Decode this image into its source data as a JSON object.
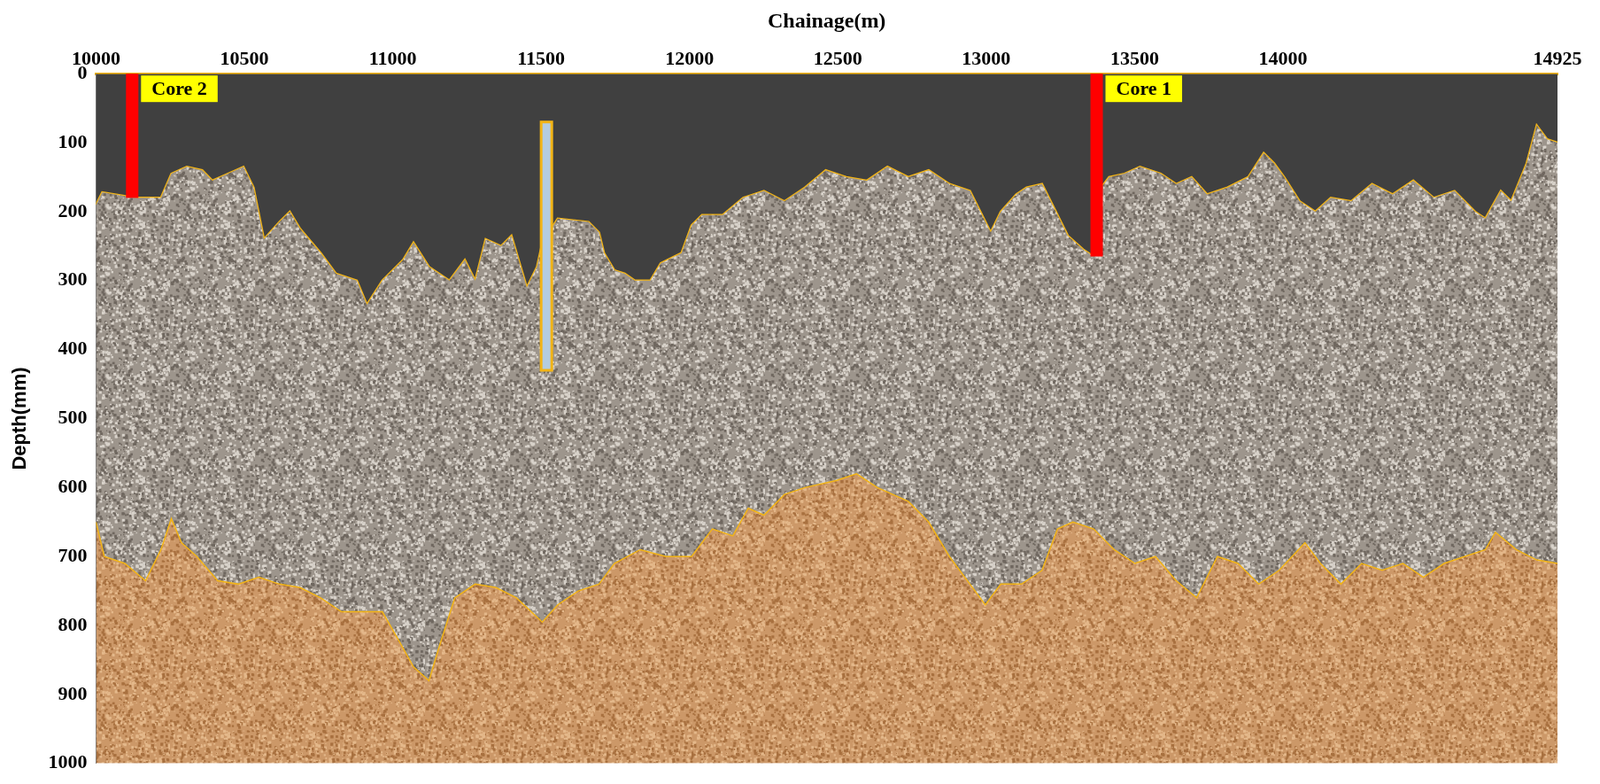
{
  "chart_data": {
    "type": "line",
    "x_label": "Chainage(m)",
    "y_label": "Depth(mm)",
    "xlim": [
      10000,
      14925
    ],
    "xticks": [
      10000,
      10500,
      11000,
      11500,
      12000,
      12500,
      13000,
      13500,
      14000,
      14925
    ],
    "ylim": [
      0,
      1000
    ],
    "yticks": [
      0,
      100,
      200,
      300,
      400,
      500,
      600,
      700,
      800,
      900,
      1000
    ],
    "grid": false,
    "series": [
      {
        "color": "#f2b416",
        "x": [
          10000,
          10021,
          10132,
          10219,
          10254,
          10306,
          10358,
          10392,
          10445,
          10497,
          10531,
          10566,
          10618,
          10653,
          10688,
          10757,
          10809,
          10879,
          10913,
          10965,
          11035,
          11070,
          11122,
          11191,
          11243,
          11278,
          11313,
          11365,
          11400,
          11452,
          11486,
          11504,
          11556,
          11660,
          11695,
          11712,
          11747,
          11782,
          11816,
          11868,
          11903,
          11973,
          12007,
          12042,
          12112,
          12181,
          12251,
          12320,
          12389,
          12459,
          12528,
          12598,
          12667,
          12737,
          12806,
          12876,
          12945,
          12980,
          13015,
          13049,
          13101,
          13136,
          13188,
          13223,
          13275,
          13327,
          13362,
          13379,
          13414,
          13466,
          13518,
          13588,
          13640,
          13692,
          13744,
          13813,
          13883,
          13935,
          13970,
          14004,
          14056,
          14109,
          14161,
          14230,
          14300,
          14369,
          14439,
          14508,
          14578,
          14647,
          14682,
          14734,
          14769,
          14821,
          14855,
          14890,
          14925
        ],
        "values": [
          190,
          172,
          180,
          180,
          145,
          135,
          140,
          155,
          145,
          135,
          165,
          240,
          215,
          200,
          225,
          260,
          290,
          300,
          335,
          300,
          270,
          245,
          280,
          300,
          270,
          300,
          240,
          250,
          235,
          310,
          280,
          245,
          210,
          215,
          230,
          260,
          285,
          290,
          300,
          300,
          275,
          260,
          220,
          205,
          205,
          180,
          170,
          185,
          165,
          140,
          150,
          155,
          135,
          150,
          140,
          160,
          170,
          200,
          230,
          200,
          175,
          165,
          160,
          190,
          235,
          255,
          265,
          170,
          150,
          145,
          135,
          145,
          160,
          150,
          175,
          165,
          150,
          115,
          130,
          150,
          185,
          200,
          180,
          185,
          160,
          175,
          155,
          180,
          170,
          200,
          210,
          170,
          185,
          130,
          75,
          95,
          100
        ]
      },
      {
        "color": "#f2b416",
        "x": [
          10000,
          10028,
          10097,
          10167,
          10219,
          10254,
          10288,
          10340,
          10410,
          10479,
          10549,
          10618,
          10688,
          10757,
          10827,
          10879,
          10965,
          11018,
          11070,
          11122,
          11157,
          11209,
          11278,
          11348,
          11417,
          11504,
          11556,
          11625,
          11695,
          11747,
          11834,
          11921,
          12007,
          12077,
          12146,
          12198,
          12251,
          12320,
          12389,
          12494,
          12563,
          12633,
          12737,
          12806,
          12876,
          12945,
          12997,
          13049,
          13119,
          13188,
          13240,
          13292,
          13362,
          13431,
          13501,
          13570,
          13640,
          13709,
          13779,
          13848,
          13918,
          13987,
          14074,
          14126,
          14195,
          14265,
          14334,
          14404,
          14473,
          14543,
          14612,
          14682,
          14716,
          14786,
          14855,
          14925
        ],
        "values": [
          650,
          700,
          710,
          735,
          690,
          645,
          680,
          700,
          735,
          740,
          730,
          740,
          745,
          760,
          780,
          780,
          780,
          820,
          860,
          880,
          830,
          760,
          740,
          745,
          760,
          795,
          770,
          750,
          740,
          710,
          690,
          700,
          700,
          660,
          670,
          630,
          640,
          610,
          600,
          590,
          580,
          600,
          620,
          650,
          700,
          740,
          770,
          740,
          740,
          720,
          660,
          650,
          660,
          690,
          710,
          700,
          735,
          760,
          700,
          710,
          740,
          720,
          680,
          710,
          740,
          710,
          720,
          710,
          730,
          710,
          700,
          690,
          665,
          690,
          705,
          710
        ]
      }
    ],
    "annotations": [
      {
        "label": "Core 2",
        "x": 10122,
        "from": 0,
        "to": 180,
        "color": "#ff0000"
      },
      {
        "label": "Core 1",
        "x": 13372,
        "from": 0,
        "to": 265,
        "color": "#ff0000"
      },
      {
        "x": 11518,
        "from": 70,
        "to": 430,
        "color": "#b4cce0"
      }
    ]
  }
}
